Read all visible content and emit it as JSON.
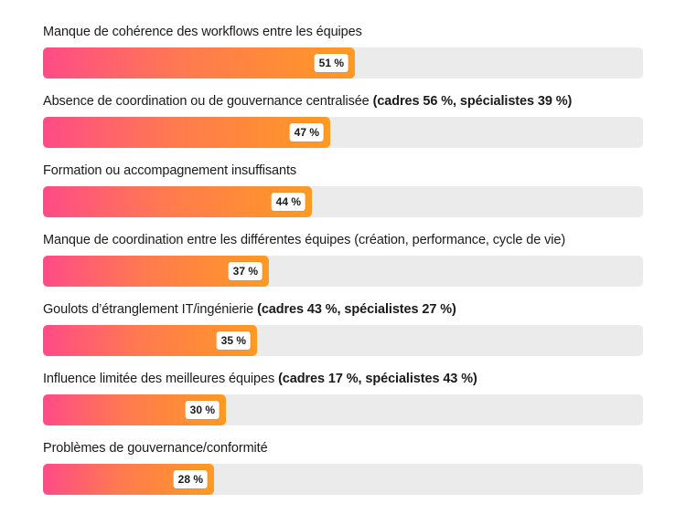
{
  "chart_data": {
    "type": "bar",
    "orientation": "horizontal",
    "xlim": [
      0,
      100
    ],
    "grid": false,
    "categories": [
      "Manque de cohérence des workflows entre les équipes",
      "Absence de coordination ou de gouvernance centralisée",
      "Formation ou accompagnement insuffisants",
      "Manque de coordination entre les différentes équipes (création, performance, cycle de vie)",
      "Goulots d’étranglement IT/ingénierie",
      "Influence limitée des meilleures équipes",
      "Problèmes de gouvernance/conformité"
    ],
    "notes": [
      "",
      "(cadres 56 %, spécialistes 39 %)",
      "",
      "",
      "(cadres 43 %, spécialistes 27 %)",
      "(cadres 17 %, spécialistes 43 %)",
      ""
    ],
    "values": [
      51,
      47,
      44,
      37,
      35,
      30,
      28
    ],
    "value_labels": [
      "51 %",
      "47 %",
      "44 %",
      "37 %",
      "35 %",
      "30 %",
      "28 %"
    ],
    "colors": {
      "gradient_start": "#ff4b87",
      "gradient_end": "#ff9a22",
      "track": "#ebebeb"
    }
  }
}
